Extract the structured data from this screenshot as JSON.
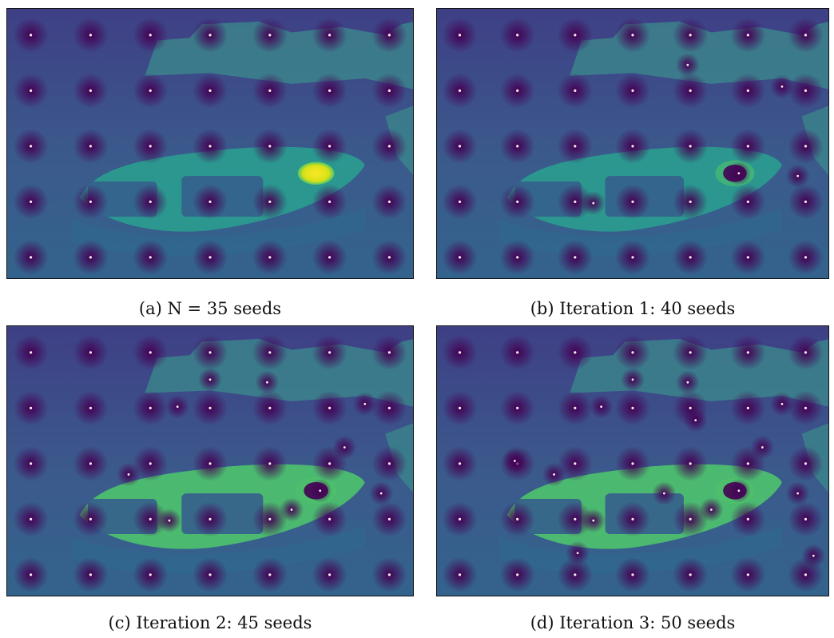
{
  "figure": {
    "panels": [
      {
        "id": "a",
        "caption": "(a) N = 35 seeds",
        "seed_grid_cols": 7,
        "seed_grid_rows": 5,
        "hotspot": "bright-oval"
      },
      {
        "id": "b",
        "caption": "(b) Iteration 1: 40 seeds",
        "seed_grid_cols": 7,
        "seed_grid_rows": 5,
        "extra_seeds": 5,
        "hotspot": "dark-hole"
      },
      {
        "id": "c",
        "caption": "(c) Iteration 2: 45 seeds",
        "seed_grid_cols": 7,
        "seed_grid_rows": 5,
        "extra_seeds": 10,
        "hotspot": "dark-hole"
      },
      {
        "id": "d",
        "caption": "(d) Iteration 3: 50 seeds",
        "seed_grid_cols": 7,
        "seed_grid_rows": 5,
        "extra_seeds": 15,
        "hotspot": "dark-hole"
      }
    ],
    "colormap": {
      "background": "#3f4788",
      "dark": "#440154",
      "deep": "#31688e",
      "boat": "#2a9d8f",
      "boat_bright": "#4ec36b",
      "highlight": "#fde725",
      "town": "#3b8b8c"
    }
  }
}
